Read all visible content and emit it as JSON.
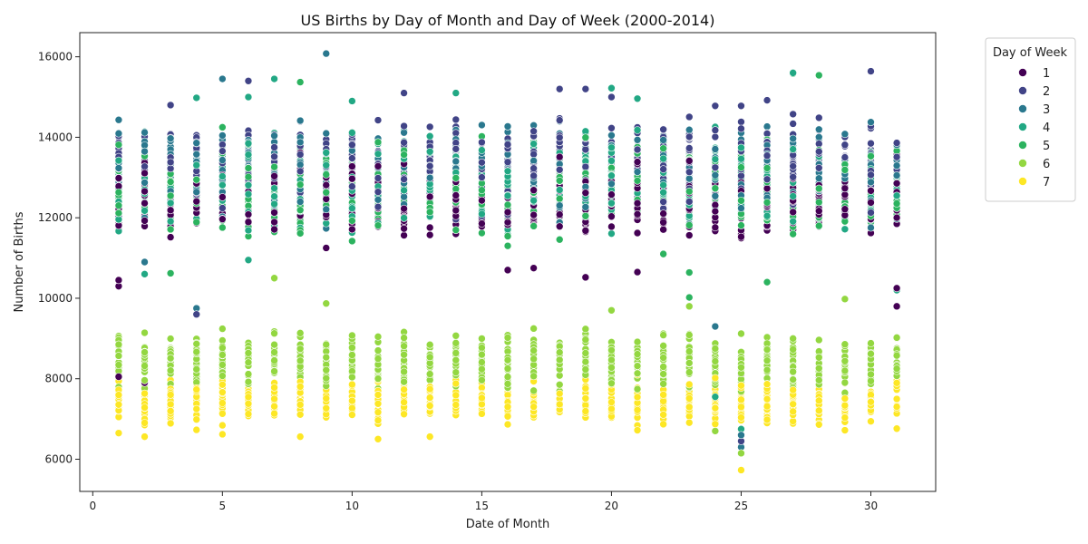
{
  "chart_data": {
    "type": "scatter",
    "title": "US Births by Day of Month and Day of Week (2000-2014)",
    "xlabel": "Date of Month",
    "ylabel": "Number of Births",
    "xlim": [
      -0.5,
      32.5
    ],
    "ylim": [
      5200,
      16600
    ],
    "xticks": [
      0,
      5,
      10,
      15,
      20,
      25,
      30
    ],
    "yticks": [
      6000,
      8000,
      10000,
      12000,
      14000,
      16000
    ],
    "grid": false,
    "legend": {
      "title": "Day of Week",
      "placement": "outside-upper-right"
    },
    "series": [
      {
        "name": "1",
        "color": "#440154",
        "weekday": true,
        "y_range": [
          11200,
          13800
        ],
        "highlights": [
          [
            1,
            10300
          ],
          [
            1,
            10450
          ],
          [
            1,
            8050
          ],
          [
            2,
            7900
          ],
          [
            5,
            8450
          ],
          [
            9,
            11250
          ],
          [
            16,
            10700
          ],
          [
            17,
            10750
          ],
          [
            19,
            10520
          ],
          [
            21,
            10650
          ],
          [
            24,
            7600
          ],
          [
            25,
            8100
          ],
          [
            26,
            8500
          ],
          [
            28,
            8000
          ],
          [
            30,
            7500
          ],
          [
            31,
            10250
          ],
          [
            31,
            10200
          ],
          [
            31,
            9800
          ]
        ]
      },
      {
        "name": "2",
        "color": "#414487",
        "weekday": true,
        "y_range": [
          11800,
          14800
        ],
        "highlights": [
          [
            3,
            14800
          ],
          [
            5,
            15450
          ],
          [
            6,
            15400
          ],
          [
            12,
            15100
          ],
          [
            18,
            15200
          ],
          [
            19,
            15200
          ],
          [
            20,
            15000
          ],
          [
            24,
            14780
          ],
          [
            25,
            14780
          ],
          [
            26,
            14920
          ],
          [
            30,
            15640
          ],
          [
            4,
            9600
          ],
          [
            25,
            6450
          ]
        ]
      },
      {
        "name": "3",
        "color": "#2a788e",
        "weekday": true,
        "y_range": [
          11500,
          14700
        ],
        "highlights": [
          [
            9,
            16080
          ],
          [
            5,
            15450
          ],
          [
            6,
            15400
          ],
          [
            2,
            10900
          ],
          [
            4,
            9750
          ],
          [
            24,
            9300
          ],
          [
            25,
            6300
          ],
          [
            25,
            6600
          ]
        ]
      },
      {
        "name": "4",
        "color": "#22a884",
        "weekday": true,
        "y_range": [
          11300,
          14500
        ],
        "highlights": [
          [
            7,
            15450
          ],
          [
            4,
            14980
          ],
          [
            6,
            15000
          ],
          [
            10,
            14900
          ],
          [
            14,
            15100
          ],
          [
            20,
            15220
          ],
          [
            21,
            14960
          ],
          [
            27,
            15600
          ],
          [
            2,
            10600
          ],
          [
            6,
            10950
          ],
          [
            24,
            7550
          ],
          [
            25,
            6750
          ],
          [
            28,
            7200
          ],
          [
            31,
            10200
          ]
        ]
      },
      {
        "name": "5",
        "color": "#2cb35f",
        "weekday": true,
        "y_range": [
          11200,
          14300
        ],
        "highlights": [
          [
            8,
            15370
          ],
          [
            27,
            15580
          ],
          [
            28,
            15540
          ],
          [
            20,
            15220
          ],
          [
            3,
            10620
          ],
          [
            22,
            11100
          ],
          [
            23,
            10640
          ],
          [
            26,
            10400
          ],
          [
            1,
            7300
          ],
          [
            23,
            10020
          ]
        ]
      },
      {
        "name": "6",
        "color": "#93d741",
        "weekday": false,
        "y_range": [
          7500,
          9400
        ],
        "highlights": [
          [
            7,
            10500
          ],
          [
            9,
            9870
          ],
          [
            29,
            9980
          ],
          [
            20,
            9700
          ],
          [
            23,
            9800
          ],
          [
            25,
            6150
          ],
          [
            24,
            6700
          ]
        ]
      },
      {
        "name": "7",
        "color": "#fde725",
        "weekday": false,
        "y_range": [
          6700,
          8200
        ],
        "highlights": [
          [
            1,
            6650
          ],
          [
            2,
            6560
          ],
          [
            4,
            6730
          ],
          [
            5,
            6620
          ],
          [
            8,
            6560
          ],
          [
            11,
            6500
          ],
          [
            13,
            6560
          ],
          [
            21,
            6720
          ],
          [
            25,
            5730
          ],
          [
            29,
            6720
          ],
          [
            31,
            6760
          ]
        ]
      }
    ]
  }
}
